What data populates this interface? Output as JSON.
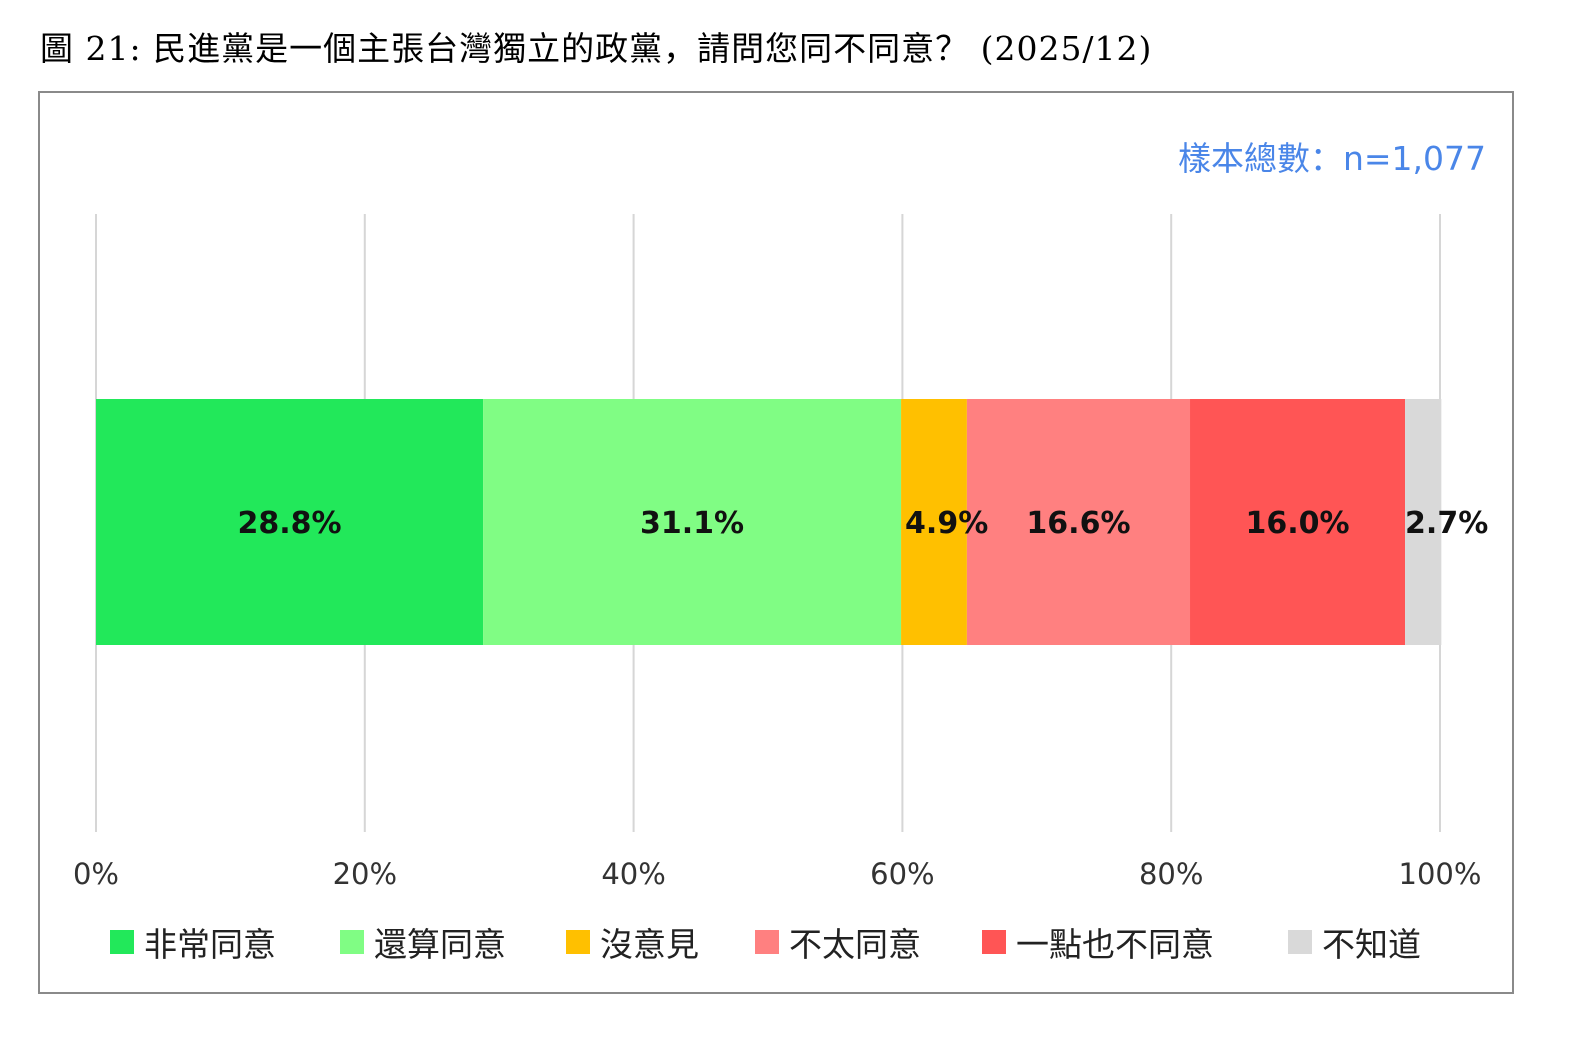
{
  "page": {
    "title": "圖 21: 民進黨是一個主張台灣獨立的政黨，請問您同不同意？ (2025/12)",
    "sample_label": "樣本總數：n=1,077"
  },
  "chart_data": {
    "type": "bar",
    "orientation": "horizontal",
    "stacked": true,
    "categories": [
      ""
    ],
    "series": [
      {
        "name": "非常同意",
        "values": [
          28.8
        ],
        "label": "28.8%",
        "color": "#22e85a"
      },
      {
        "name": "還算同意",
        "values": [
          31.1
        ],
        "label": "31.1%",
        "color": "#80fd84"
      },
      {
        "name": "沒意見",
        "values": [
          4.9
        ],
        "label": "4.9%",
        "color": "#ffc000"
      },
      {
        "name": "不太同意",
        "values": [
          16.6
        ],
        "label": "16.6%",
        "color": "#ff8080"
      },
      {
        "name": "一點也不同意",
        "values": [
          16.0
        ],
        "label": "16.0%",
        "color": "#ff5555"
      },
      {
        "name": "不知道",
        "values": [
          2.7
        ],
        "label": "2.7%",
        "color": "#d9d9d9"
      }
    ],
    "xlim": [
      0,
      100
    ],
    "ticks": [
      "0%",
      "20%",
      "40%",
      "60%",
      "80%",
      "100%"
    ],
    "grid": true,
    "legend_position": "bottom"
  }
}
